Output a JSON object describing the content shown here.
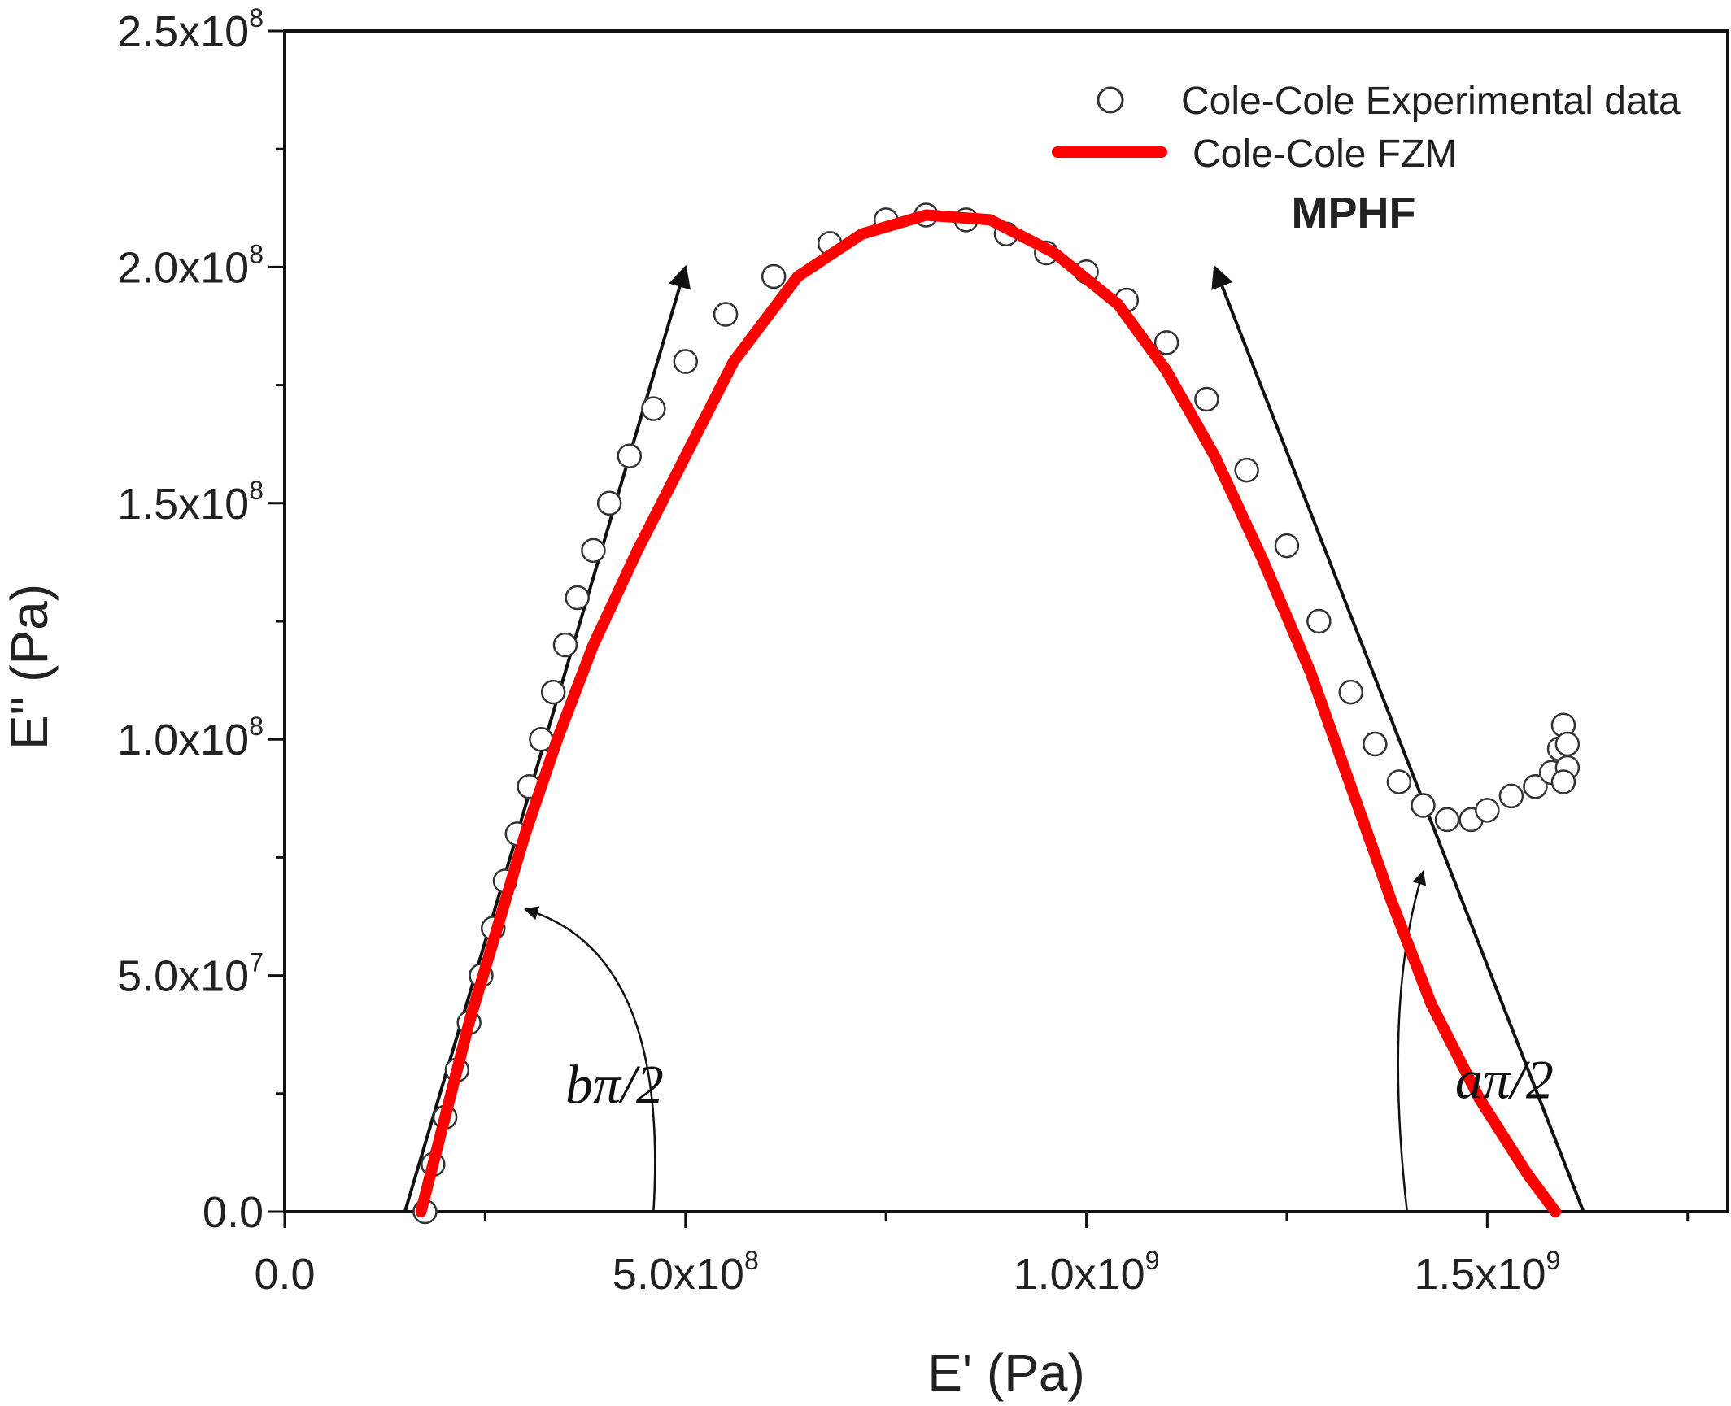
{
  "chart_data": {
    "type": "scatter",
    "title": "MPHF",
    "xlabel": "E' (Pa)",
    "ylabel": "E\" (Pa)",
    "xlim": [
      0,
      1800000000
    ],
    "ylim": [
      0,
      250000000
    ],
    "x_ticks": [
      {
        "value": 0,
        "mant": "0.0",
        "exp": ""
      },
      {
        "value": 500000000,
        "mant": "5.0x10",
        "exp": "8"
      },
      {
        "value": 1000000000,
        "mant": "1.0x10",
        "exp": "9"
      },
      {
        "value": 1500000000,
        "mant": "1.5x10",
        "exp": "9"
      }
    ],
    "y_ticks": [
      {
        "value": 0,
        "mant": "0.0",
        "exp": ""
      },
      {
        "value": 50000000,
        "mant": "5.0x10",
        "exp": "7"
      },
      {
        "value": 100000000,
        "mant": "1.0x10",
        "exp": "8"
      },
      {
        "value": 150000000,
        "mant": "1.5x10",
        "exp": "8"
      },
      {
        "value": 200000000,
        "mant": "2.0x10",
        "exp": "8"
      },
      {
        "value": 250000000,
        "mant": "2.5x10",
        "exp": "8"
      }
    ],
    "legend_position": "top-right",
    "series": [
      {
        "name": "Cole-Cole Experimental data",
        "marker": "open-circle",
        "color": "#333333",
        "points": [
          [
            175000000,
            0
          ],
          [
            185000000,
            10000000
          ],
          [
            200000000,
            20000000
          ],
          [
            215000000,
            30000000
          ],
          [
            230000000,
            40000000
          ],
          [
            245000000,
            50000000
          ],
          [
            260000000,
            60000000
          ],
          [
            275000000,
            70000000
          ],
          [
            290000000,
            80000000
          ],
          [
            305000000,
            90000000
          ],
          [
            320000000,
            100000000
          ],
          [
            335000000,
            110000000
          ],
          [
            350000000,
            120000000
          ],
          [
            365000000,
            130000000
          ],
          [
            385000000,
            140000000
          ],
          [
            405000000,
            150000000
          ],
          [
            430000000,
            160000000
          ],
          [
            460000000,
            170000000
          ],
          [
            500000000,
            180000000
          ],
          [
            550000000,
            190000000
          ],
          [
            610000000,
            198000000
          ],
          [
            680000000,
            205000000
          ],
          [
            750000000,
            210000000
          ],
          [
            800000000,
            211000000
          ],
          [
            850000000,
            210000000
          ],
          [
            900000000,
            207000000
          ],
          [
            950000000,
            203000000
          ],
          [
            1000000000,
            199000000
          ],
          [
            1050000000,
            193000000
          ],
          [
            1100000000,
            184000000
          ],
          [
            1150000000,
            172000000
          ],
          [
            1200000000,
            157000000
          ],
          [
            1250000000,
            141000000
          ],
          [
            1290000000,
            125000000
          ],
          [
            1330000000,
            110000000
          ],
          [
            1360000000,
            99000000
          ],
          [
            1390000000,
            91000000
          ],
          [
            1420000000,
            86000000
          ],
          [
            1450000000,
            83000000
          ],
          [
            1480000000,
            83000000
          ],
          [
            1500000000,
            85000000
          ],
          [
            1530000000,
            88000000
          ],
          [
            1560000000,
            90000000
          ],
          [
            1580000000,
            93000000
          ],
          [
            1590000000,
            98000000
          ],
          [
            1595000000,
            103000000
          ],
          [
            1600000000,
            99000000
          ],
          [
            1600000000,
            94000000
          ],
          [
            1595000000,
            91000000
          ]
        ]
      },
      {
        "name": "Cole-Cole FZM",
        "marker": "line",
        "color": "#ff0000",
        "points": [
          [
            170000000,
            0
          ],
          [
            200000000,
            20000000
          ],
          [
            230000000,
            40000000
          ],
          [
            265000000,
            60000000
          ],
          [
            300000000,
            80000000
          ],
          [
            340000000,
            100000000
          ],
          [
            385000000,
            120000000
          ],
          [
            440000000,
            140000000
          ],
          [
            500000000,
            160000000
          ],
          [
            560000000,
            180000000
          ],
          [
            640000000,
            198000000
          ],
          [
            720000000,
            207000000
          ],
          [
            800000000,
            211000000
          ],
          [
            880000000,
            210000000
          ],
          [
            960000000,
            203000000
          ],
          [
            1040000000,
            192000000
          ],
          [
            1100000000,
            178000000
          ],
          [
            1160000000,
            160000000
          ],
          [
            1220000000,
            138000000
          ],
          [
            1280000000,
            114000000
          ],
          [
            1330000000,
            90000000
          ],
          [
            1380000000,
            66000000
          ],
          [
            1430000000,
            44000000
          ],
          [
            1490000000,
            24000000
          ],
          [
            1550000000,
            8000000
          ],
          [
            1585000000,
            0
          ]
        ]
      }
    ],
    "annotations": [
      {
        "text": "bπ/2",
        "x": 350000000,
        "y": 23000000
      },
      {
        "text": "aπ/2",
        "x": 1460000000,
        "y": 24000000
      }
    ],
    "tangent_lines": [
      {
        "from": [
          150000000,
          0
        ],
        "to": [
          500000000,
          200000000
        ]
      },
      {
        "from": [
          1620000000,
          0
        ],
        "to": [
          1160000000,
          200000000
        ]
      }
    ],
    "angle_arcs": [
      {
        "start": [
          460000000,
          0
        ],
        "control": [
          480000000,
          55000000
        ],
        "end": [
          300000000,
          64000000
        ]
      },
      {
        "start": [
          1400000000,
          0
        ],
        "control": [
          1370000000,
          45000000
        ],
        "end": [
          1420000000,
          72000000
        ]
      }
    ]
  }
}
